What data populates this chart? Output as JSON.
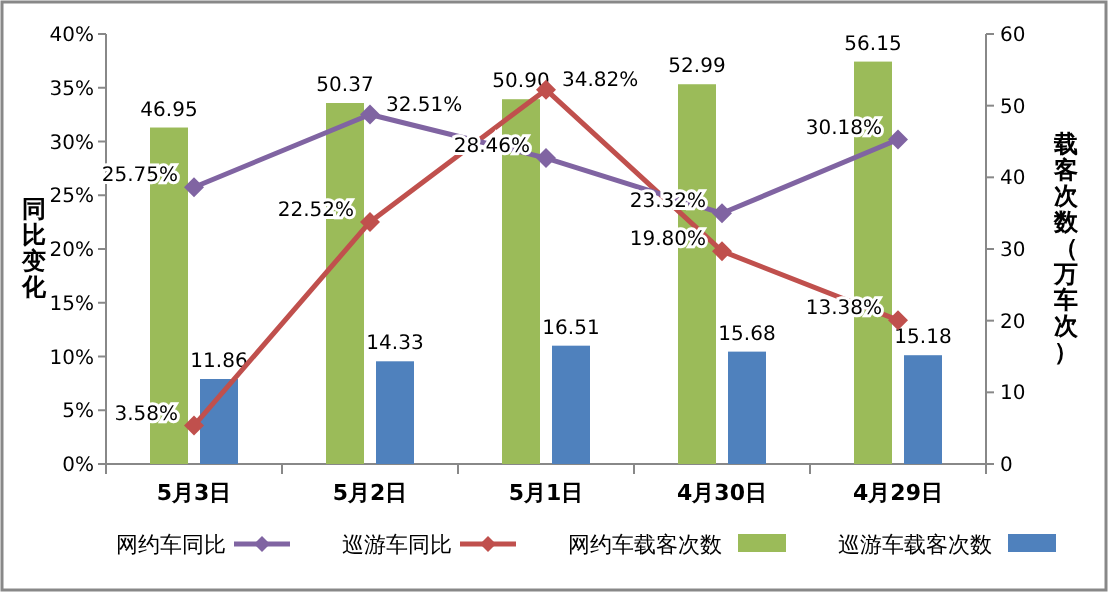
{
  "chart_data": {
    "type": "bar",
    "categories": [
      "5月3日",
      "5月2日",
      "5月1日",
      "4月30日",
      "4月29日"
    ],
    "ylabel": "同比变化",
    "y2label": "载客次数（万车次）",
    "ylim": [
      0,
      40
    ],
    "yticks": [
      {
        "value": 0,
        "label": "0%"
      },
      {
        "value": 5,
        "label": "5%"
      },
      {
        "value": 10,
        "label": "10%"
      },
      {
        "value": 15,
        "label": "15%"
      },
      {
        "value": 20,
        "label": "20%"
      },
      {
        "value": 25,
        "label": "25%"
      },
      {
        "value": 30,
        "label": "30%"
      },
      {
        "value": 35,
        "label": "35%"
      },
      {
        "value": 40,
        "label": "40%"
      }
    ],
    "y2lim": [
      0,
      60
    ],
    "y2ticks": [
      0,
      10,
      20,
      30,
      40,
      50,
      60
    ],
    "legend": "bottom",
    "grid": false,
    "series": [
      {
        "name": "巡游车载客次数",
        "axis": "y2",
        "color": "#4f81bd",
        "values": [
          11.86,
          14.33,
          16.51,
          15.68,
          15.18
        ],
        "value_labels": [
          "11.86",
          "14.33",
          "16.51",
          "15.68",
          "15.18"
        ]
      },
      {
        "name": "网约车载客次数",
        "axis": "y2",
        "color": "#9bbb59",
        "values": [
          46.95,
          50.37,
          50.9,
          52.99,
          56.15
        ],
        "value_labels": [
          "46.95",
          "50.37",
          "50.90",
          "52.99",
          "56.15"
        ]
      },
      {
        "name": "巡游车同比",
        "type": "line",
        "marker": "diamond",
        "color": "#c0504d",
        "values": [
          3.58,
          22.52,
          34.82,
          19.8,
          13.38
        ],
        "value_labels": [
          "3.58%",
          "22.52%",
          "34.82%",
          "19.80%",
          "13.38%"
        ]
      },
      {
        "name": "网约车同比",
        "type": "line",
        "marker": "diamond",
        "color": "#8064a2",
        "values": [
          25.75,
          32.51,
          28.46,
          23.32,
          30.18
        ],
        "value_labels": [
          "25.75%",
          "32.51%",
          "28.46%",
          "23.32%",
          "30.18%"
        ]
      }
    ]
  }
}
